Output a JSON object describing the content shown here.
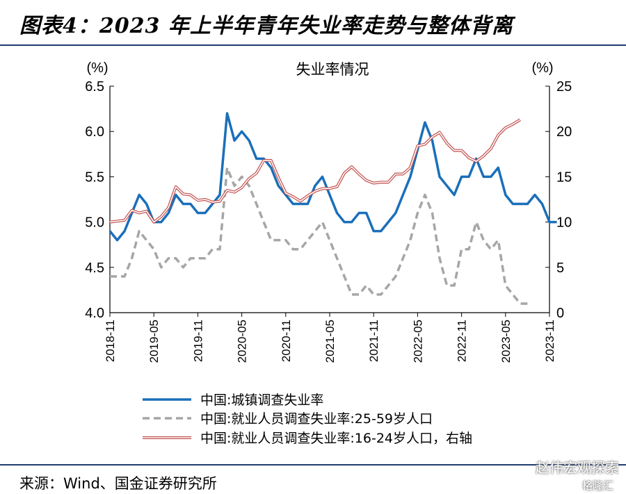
{
  "header": {
    "title": "图表4：2023 年上半年青年失业率走势与整体背离"
  },
  "footer": {
    "source": "来源：Wind、国金证券研究所",
    "watermark": "赵伟宏观探索",
    "watermark_sub": "格隆汇"
  },
  "chart_data": {
    "type": "line",
    "title": "失业率情况",
    "left_unit": "(%)",
    "right_unit": "(%)",
    "left_ylim": [
      4.0,
      6.5
    ],
    "left_ticks": [
      "4.0",
      "4.5",
      "5.0",
      "5.5",
      "6.0",
      "6.5"
    ],
    "right_ylim": [
      0,
      25
    ],
    "right_ticks": [
      "0",
      "5",
      "10",
      "15",
      "20",
      "25"
    ],
    "x_ticks": [
      "2018-11",
      "2019-05",
      "2019-11",
      "2020-05",
      "2020-11",
      "2021-05",
      "2021-11",
      "2022-05",
      "2022-11",
      "2023-05",
      "2023-11"
    ],
    "x_start": "2018-11",
    "grid": false,
    "legend_position": "bottom",
    "colors": {
      "urban": "#1a6fb9",
      "age25_59": "#a6a6a6",
      "age16_24": "#c0504d"
    },
    "series": [
      {
        "name": "中国:城镇调查失业率",
        "axis": "left",
        "style": "solid",
        "values": [
          4.9,
          4.8,
          4.9,
          5.1,
          5.3,
          5.2,
          5.0,
          5.0,
          5.1,
          5.3,
          5.2,
          5.2,
          5.1,
          5.1,
          5.2,
          5.3,
          6.2,
          5.9,
          6.0,
          5.9,
          5.7,
          5.7,
          5.6,
          5.4,
          5.3,
          5.2,
          5.2,
          5.2,
          5.4,
          5.5,
          5.3,
          5.1,
          5.0,
          5.0,
          5.1,
          5.1,
          4.9,
          4.9,
          5.0,
          5.1,
          5.3,
          5.5,
          5.8,
          6.1,
          5.9,
          5.5,
          5.4,
          5.3,
          5.5,
          5.5,
          5.7,
          5.5,
          5.5,
          5.6,
          5.3,
          5.2,
          5.2,
          5.2,
          5.3,
          5.2,
          5.0,
          5.0
        ]
      },
      {
        "name": "中国:就业人员调查失业率:25-59岁人口",
        "axis": "left",
        "style": "dashed",
        "values": [
          4.4,
          4.4,
          4.4,
          4.6,
          4.9,
          4.8,
          4.7,
          4.5,
          4.6,
          4.6,
          4.5,
          4.6,
          4.6,
          4.6,
          4.7,
          4.7,
          5.6,
          5.4,
          5.5,
          5.4,
          5.2,
          5.0,
          4.8,
          4.8,
          4.8,
          4.7,
          4.7,
          4.8,
          4.9,
          5.0,
          4.8,
          4.6,
          4.4,
          4.2,
          4.2,
          4.3,
          4.2,
          4.2,
          4.3,
          4.4,
          4.6,
          4.8,
          5.1,
          5.3,
          5.1,
          4.6,
          4.3,
          4.3,
          4.7,
          4.7,
          5.0,
          4.8,
          4.7,
          4.8,
          4.3,
          4.2,
          4.1,
          4.1
        ]
      },
      {
        "name": "中国:就业人员调查失业率:16-24岁人口，右轴",
        "axis": "right",
        "style": "double",
        "values": [
          10.0,
          10.1,
          10.2,
          11.3,
          11.0,
          11.2,
          10.0,
          10.6,
          11.6,
          13.9,
          13.1,
          13.0,
          12.4,
          12.5,
          12.2,
          12.3,
          13.5,
          13.3,
          13.8,
          14.8,
          15.4,
          16.8,
          16.8,
          14.9,
          13.2,
          12.8,
          12.3,
          12.9,
          13.4,
          13.7,
          13.7,
          13.9,
          15.4,
          16.1,
          15.3,
          14.6,
          14.3,
          14.4,
          14.4,
          15.3,
          15.3,
          16.0,
          18.4,
          18.6,
          19.4,
          19.9,
          18.7,
          17.9,
          17.9,
          17.1,
          16.7,
          17.3,
          18.1,
          19.6,
          20.4,
          20.8,
          21.3
        ]
      }
    ]
  }
}
